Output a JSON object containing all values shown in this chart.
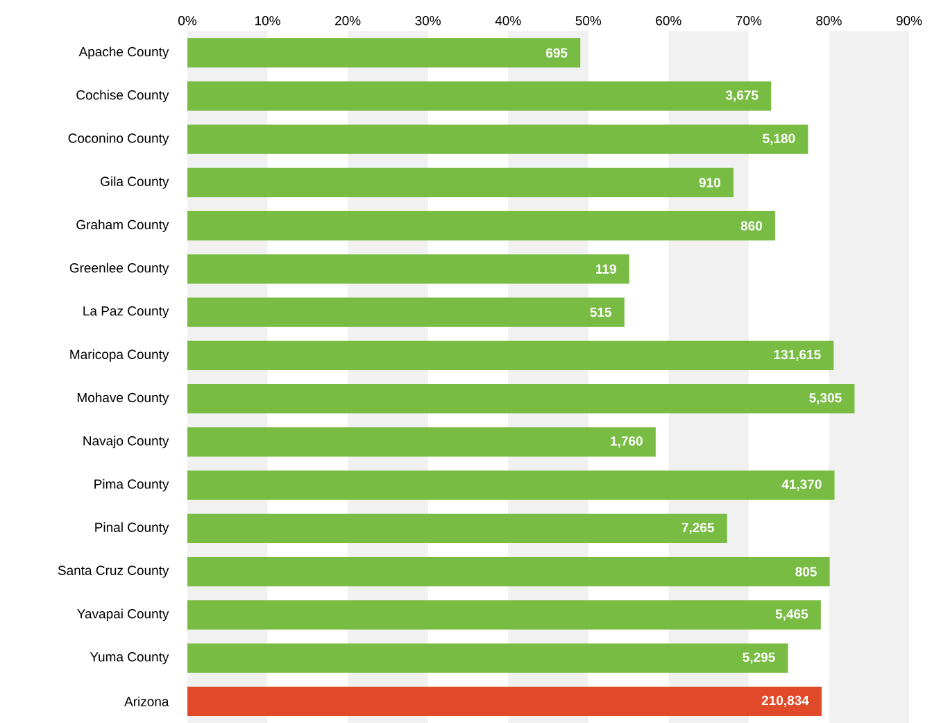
{
  "chart_data": {
    "type": "bar",
    "orientation": "horizontal",
    "categories": [
      "Apache County",
      "Cochise County",
      "Coconino County",
      "Gila County",
      "Graham County",
      "Greenlee County",
      "La Paz County",
      "Maricopa County",
      "Mohave County",
      "Navajo County",
      "Pima County",
      "Pinal County",
      "Santa Cruz County",
      "Yavapai County",
      "Yuma County",
      "Arizona"
    ],
    "values": [
      49.0,
      72.8,
      77.4,
      68.1,
      73.3,
      55.1,
      54.5,
      80.6,
      83.2,
      58.4,
      80.7,
      67.3,
      80.1,
      79.0,
      74.9,
      79.1
    ],
    "annotations": [
      {
        "text": "695",
        "x": 49.0,
        "y": "Apache County"
      },
      {
        "text": "3,675",
        "x": 72.8,
        "y": "Cochise County"
      },
      {
        "text": "5,180",
        "x": 77.4,
        "y": "Coconino County"
      },
      {
        "text": "910",
        "x": 68.1,
        "y": "Gila County"
      },
      {
        "text": "860",
        "x": 73.3,
        "y": "Graham County"
      },
      {
        "text": "119",
        "x": 55.1,
        "y": "Greenlee County"
      },
      {
        "text": "515",
        "x": 54.5,
        "y": "La Paz County"
      },
      {
        "text": "131,615",
        "x": 80.6,
        "y": "Maricopa County"
      },
      {
        "text": "5,305",
        "x": 83.2,
        "y": "Mohave County"
      },
      {
        "text": "1,760",
        "x": 58.4,
        "y": "Navajo County"
      },
      {
        "text": "41,370",
        "x": 80.7,
        "y": "Pima County"
      },
      {
        "text": "7,265",
        "x": 67.3,
        "y": "Pinal County"
      },
      {
        "text": "805",
        "x": 80.1,
        "y": "Santa Cruz County"
      },
      {
        "text": "5,465",
        "x": 79.0,
        "y": "Yavapai County"
      },
      {
        "text": "5,295",
        "x": 74.9,
        "y": "Yuma County"
      },
      {
        "text": "210,834",
        "x": 79.1,
        "y": "Arizona"
      }
    ],
    "colors": [
      "#78bc43",
      "#78bc43",
      "#78bc43",
      "#78bc43",
      "#78bc43",
      "#78bc43",
      "#78bc43",
      "#78bc43",
      "#78bc43",
      "#78bc43",
      "#78bc43",
      "#78bc43",
      "#78bc43",
      "#78bc43",
      "#78bc43",
      "#e04a28"
    ],
    "xlim": [
      0,
      90
    ],
    "xticks": [
      {
        "value": 0,
        "label": "0%"
      },
      {
        "value": 10,
        "label": "10%"
      },
      {
        "value": 20,
        "label": "20%"
      },
      {
        "value": 30,
        "label": "30%"
      },
      {
        "value": 40,
        "label": "40%"
      },
      {
        "value": 50,
        "label": "50%"
      },
      {
        "value": 60,
        "label": "60%"
      },
      {
        "value": 70,
        "label": "70%"
      },
      {
        "value": 80,
        "label": "80%"
      },
      {
        "value": 90,
        "label": "90%"
      }
    ],
    "bands": [
      {
        "axis": "x",
        "from": 0,
        "to": 10,
        "color": "#f0f1f0"
      },
      {
        "axis": "x",
        "from": 20,
        "to": 30,
        "color": "#f0f1f0"
      },
      {
        "axis": "x",
        "from": 40,
        "to": 50,
        "color": "#f0f1f0"
      },
      {
        "axis": "x",
        "from": 60,
        "to": 70,
        "color": "#f0f1f0"
      },
      {
        "axis": "x",
        "from": 80,
        "to": 90,
        "color": "#f0f1f0"
      }
    ],
    "grid": false
  }
}
